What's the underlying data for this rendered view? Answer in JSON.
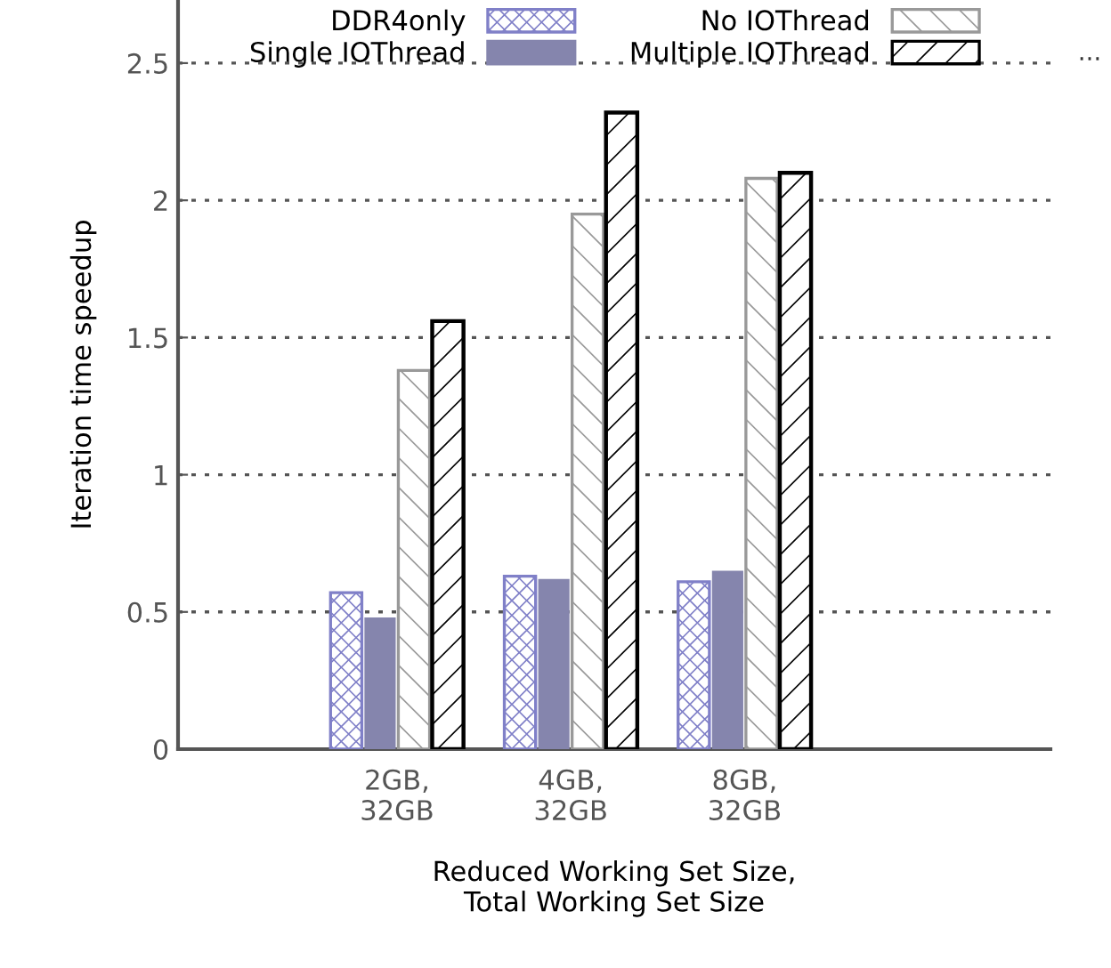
{
  "chart_data": {
    "type": "bar",
    "xlabel": "Reduced Working Set Size,\nTotal Working Set Size",
    "ylabel": "Iteration time speedup",
    "categories": [
      "2GB,\n32GB",
      "4GB,\n32GB",
      "8GB,\n32GB"
    ],
    "series": [
      {
        "name": "DDR4only",
        "color": "#8080c8",
        "values": [
          0.57,
          0.63,
          0.61
        ]
      },
      {
        "name": "Single IOThread",
        "color": "#8585ad",
        "values": [
          0.48,
          0.62,
          0.65
        ]
      },
      {
        "name": "No IOThread",
        "color": "#999999",
        "values": [
          1.38,
          1.95,
          2.08
        ]
      },
      {
        "name": "Multiple IOThread",
        "color": "#000000",
        "values": [
          1.56,
          2.32,
          2.1
        ]
      }
    ],
    "ylim": [
      0,
      2.73
    ],
    "yticks": [
      0,
      0.5,
      1,
      1.5,
      2,
      2.5
    ],
    "grid": "y",
    "legend": "top",
    "annotations": [
      "..."
    ]
  }
}
